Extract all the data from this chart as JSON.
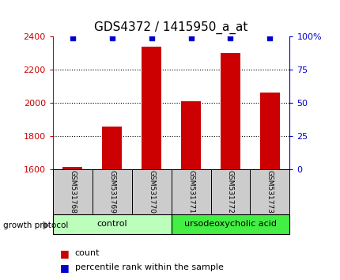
{
  "title": "GDS4372 / 1415950_a_at",
  "samples": [
    "GSM531768",
    "GSM531769",
    "GSM531770",
    "GSM531771",
    "GSM531772",
    "GSM531773"
  ],
  "counts": [
    1613,
    1860,
    2340,
    2010,
    2300,
    2060
  ],
  "percentiles": [
    99,
    99,
    99,
    99,
    99,
    99
  ],
  "ylim_left": [
    1600,
    2400
  ],
  "ylim_right": [
    0,
    100
  ],
  "yticks_left": [
    1600,
    1800,
    2000,
    2200,
    2400
  ],
  "yticks_right": [
    0,
    25,
    50,
    75,
    100
  ],
  "groups": [
    {
      "label": "control",
      "indices": [
        0,
        1,
        2
      ],
      "color": "#bbffbb"
    },
    {
      "label": "ursodeoxycholic acid",
      "indices": [
        3,
        4,
        5
      ],
      "color": "#44ee44"
    }
  ],
  "bar_color": "#cc0000",
  "dot_color": "#0000cc",
  "bar_width": 0.5,
  "sample_box_color": "#cccccc",
  "left_tick_color": "#cc0000",
  "right_tick_color": "#0000cc",
  "growth_protocol_label": "growth protocol",
  "legend_count": "count",
  "legend_percentile": "percentile rank within the sample",
  "title_fontsize": 11,
  "tick_fontsize": 8,
  "sample_fontsize": 6.5,
  "group_fontsize": 8,
  "legend_fontsize": 8
}
